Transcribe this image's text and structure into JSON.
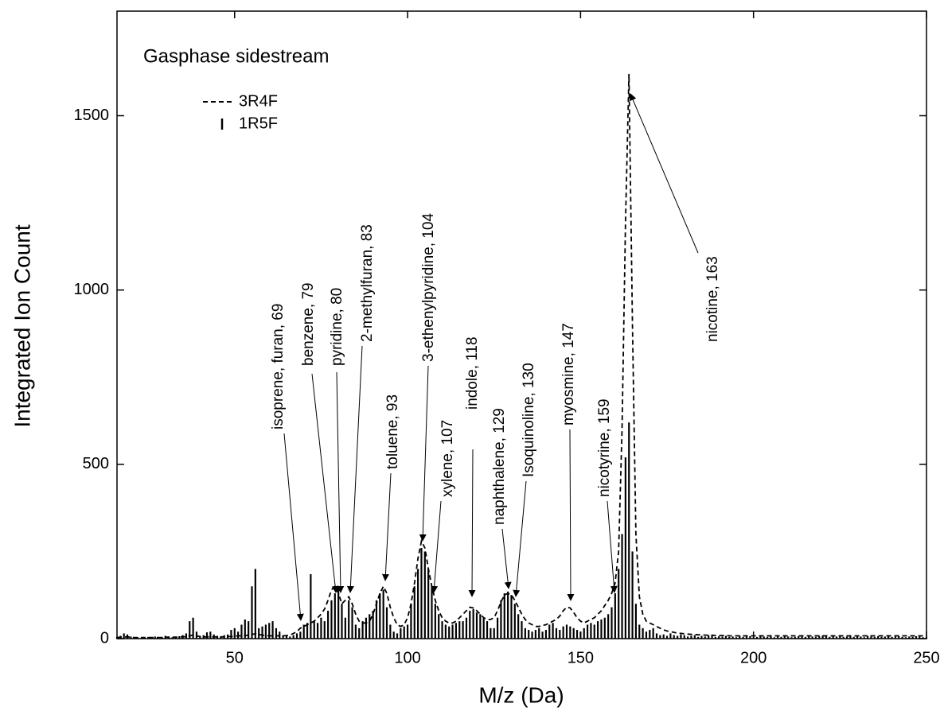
{
  "chart_data": {
    "type": "bar",
    "title": "Gasphase sidestream",
    "x_label": "M/z (Da)",
    "y_label": "Integrated Ion Count",
    "xlim": [
      16,
      250
    ],
    "ylim": [
      0,
      1800
    ],
    "xticks": [
      50,
      100,
      150,
      200,
      250
    ],
    "yticks": [
      0,
      500,
      1000,
      1500
    ],
    "legend": "upper left",
    "x": [
      16,
      17,
      18,
      19,
      20,
      21,
      22,
      23,
      24,
      25,
      26,
      27,
      28,
      29,
      30,
      31,
      32,
      33,
      34,
      35,
      36,
      37,
      38,
      39,
      40,
      41,
      42,
      43,
      44,
      45,
      46,
      47,
      48,
      49,
      50,
      51,
      52,
      53,
      54,
      55,
      56,
      57,
      58,
      59,
      60,
      61,
      62,
      63,
      64,
      65,
      66,
      67,
      68,
      69,
      70,
      71,
      72,
      73,
      74,
      75,
      76,
      77,
      78,
      79,
      80,
      81,
      82,
      83,
      84,
      85,
      86,
      87,
      88,
      89,
      90,
      91,
      92,
      93,
      94,
      95,
      96,
      97,
      98,
      99,
      100,
      101,
      102,
      103,
      104,
      105,
      106,
      107,
      108,
      109,
      110,
      111,
      112,
      113,
      114,
      115,
      116,
      117,
      118,
      119,
      120,
      121,
      122,
      123,
      124,
      125,
      126,
      127,
      128,
      129,
      130,
      131,
      132,
      133,
      134,
      135,
      136,
      137,
      138,
      139,
      140,
      141,
      142,
      143,
      144,
      145,
      146,
      147,
      148,
      149,
      150,
      151,
      152,
      153,
      154,
      155,
      156,
      157,
      158,
      159,
      160,
      161,
      162,
      163,
      164,
      165,
      166,
      167,
      168,
      169,
      170,
      171,
      172,
      173,
      174,
      175,
      176,
      177,
      178,
      179,
      180,
      181,
      182,
      183,
      184,
      185,
      186,
      187,
      188,
      189,
      190,
      191,
      192,
      193,
      194,
      195,
      196,
      197,
      198,
      199,
      200,
      201,
      202,
      203,
      204,
      205,
      206,
      207,
      208,
      209,
      210,
      211,
      212,
      213,
      214,
      215,
      216,
      217,
      218,
      219,
      220,
      221,
      222,
      223,
      224,
      225,
      226,
      227,
      228,
      229,
      230,
      231,
      232,
      233,
      234,
      235,
      236,
      237,
      238,
      239,
      240,
      241,
      242,
      243,
      244,
      245,
      246,
      247,
      248,
      249,
      250
    ],
    "series": [
      {
        "name": "3R4F",
        "type": "line",
        "style": "dashed",
        "color": "#000000",
        "values": [
          3,
          4,
          5,
          5,
          4,
          3,
          3,
          3,
          3,
          3,
          3,
          3,
          3,
          3,
          4,
          4,
          4,
          4,
          5,
          5,
          6,
          8,
          10,
          8,
          6,
          5,
          5,
          5,
          5,
          5,
          5,
          5,
          6,
          6,
          7,
          8,
          8,
          9,
          10,
          12,
          14,
          12,
          10,
          9,
          8,
          8,
          8,
          8,
          8,
          9,
          10,
          15,
          20,
          30,
          35,
          40,
          45,
          50,
          60,
          70,
          85,
          110,
          140,
          150,
          130,
          100,
          110,
          120,
          100,
          70,
          50,
          45,
          45,
          50,
          70,
          100,
          130,
          150,
          130,
          90,
          60,
          40,
          35,
          40,
          60,
          100,
          160,
          230,
          280,
          260,
          200,
          150,
          110,
          80,
          60,
          50,
          45,
          45,
          50,
          60,
          70,
          80,
          90,
          88,
          80,
          70,
          60,
          55,
          55,
          60,
          80,
          105,
          125,
          130,
          125,
          110,
          90,
          70,
          55,
          45,
          40,
          35,
          35,
          38,
          40,
          45,
          50,
          55,
          65,
          80,
          90,
          88,
          75,
          60,
          50,
          45,
          50,
          55,
          60,
          70,
          80,
          95,
          110,
          130,
          160,
          250,
          600,
          1200,
          1620,
          900,
          300,
          120,
          70,
          50,
          45,
          40,
          35,
          30,
          25,
          22,
          20,
          18,
          16,
          15,
          14,
          13,
          12,
          12,
          11,
          11,
          10,
          10,
          10,
          9,
          9,
          9,
          9,
          8,
          8,
          8,
          8,
          8,
          8,
          8,
          8,
          8,
          8,
          8,
          8,
          8,
          8,
          8,
          8,
          8,
          8,
          8,
          8,
          8,
          8,
          8,
          8,
          8,
          8,
          8,
          8,
          8,
          8,
          8,
          8,
          8,
          8,
          8,
          8,
          8,
          8,
          8,
          8,
          8,
          8,
          8,
          8,
          8,
          8,
          8,
          8,
          8,
          8,
          8,
          8,
          8,
          8,
          8,
          8,
          8,
          8
        ]
      },
      {
        "name": "1R5F",
        "type": "bar",
        "color": "#000000",
        "values": [
          5,
          8,
          15,
          12,
          6,
          3,
          4,
          2,
          3,
          5,
          4,
          6,
          3,
          5,
          8,
          6,
          4,
          5,
          7,
          10,
          15,
          50,
          60,
          20,
          8,
          10,
          18,
          20,
          12,
          8,
          6,
          10,
          12,
          25,
          30,
          20,
          40,
          55,
          50,
          150,
          200,
          30,
          35,
          40,
          45,
          50,
          30,
          20,
          10,
          8,
          6,
          10,
          15,
          20,
          40,
          45,
          185,
          50,
          45,
          60,
          50,
          80,
          110,
          130,
          150,
          100,
          60,
          110,
          90,
          40,
          30,
          50,
          60,
          70,
          80,
          110,
          130,
          140,
          90,
          40,
          20,
          15,
          30,
          35,
          40,
          100,
          150,
          200,
          260,
          250,
          200,
          150,
          100,
          70,
          50,
          40,
          35,
          40,
          45,
          50,
          50,
          60,
          80,
          85,
          75,
          70,
          60,
          50,
          30,
          30,
          60,
          110,
          130,
          135,
          125,
          100,
          70,
          50,
          30,
          25,
          20,
          25,
          30,
          20,
          25,
          40,
          45,
          30,
          25,
          35,
          40,
          35,
          30,
          25,
          20,
          30,
          40,
          45,
          40,
          50,
          55,
          60,
          70,
          90,
          130,
          200,
          300,
          520,
          620,
          250,
          100,
          40,
          30,
          20,
          25,
          30,
          15,
          10,
          12,
          8,
          15,
          10,
          8,
          12,
          10,
          6,
          8,
          10,
          5,
          8,
          6,
          10,
          8,
          5,
          7,
          6,
          8,
          5,
          6,
          4,
          8,
          5,
          6,
          7,
          4,
          5,
          8,
          6,
          5,
          7,
          4,
          6,
          5,
          8,
          6,
          4,
          5,
          7,
          6,
          5,
          8,
          6,
          5,
          7,
          9,
          6,
          5,
          8,
          6,
          7,
          5,
          6,
          8,
          5,
          7,
          6,
          4,
          8,
          6,
          5,
          7,
          5,
          6,
          8,
          5,
          6,
          7,
          5,
          4,
          6,
          5,
          7,
          6,
          4,
          5
        ]
      }
    ],
    "annotations": [
      "isoprene, furan, 69",
      "benzene, 79",
      "pyridine, 80",
      "2-methylfuran, 83",
      "toluene, 93",
      "3-ethenylpyridine, 104",
      "xylene, 107",
      "indole, 118",
      "naphthalene, 129",
      "Isoquinoline, 130",
      "myosmine, 147",
      "nicotyrine, 159",
      "nicotine, 163"
    ]
  }
}
